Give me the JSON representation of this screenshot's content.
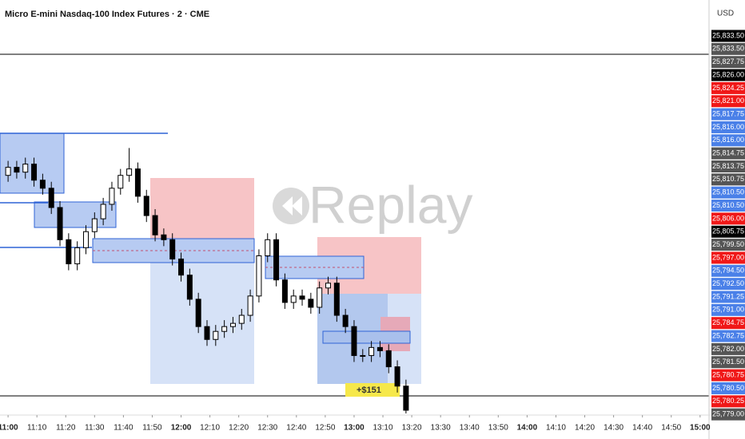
{
  "chart_data": {
    "type": "candlestick",
    "title": "Micro E-mini Nasdaq-100 Index Futures · 2 · CME",
    "currency": "USD",
    "watermark": "Replay",
    "trade_label": "+$151",
    "up_color": "#ffffff",
    "down_color": "#000000",
    "x": [
      660,
      663,
      666,
      669,
      672,
      675,
      678,
      681,
      684,
      687,
      690,
      693,
      696,
      699,
      702,
      705,
      708,
      711,
      714,
      717,
      720,
      723,
      726,
      729,
      732,
      735,
      738,
      741,
      744,
      747,
      750,
      753,
      756,
      759,
      762,
      765,
      768,
      771,
      774,
      777,
      780,
      783,
      786,
      789,
      792,
      795,
      798
    ],
    "open": [
      25814.75,
      25816.0,
      25815.25,
      25816.5,
      25814.0,
      25812.75,
      25809.75,
      25804.75,
      25801.0,
      25803.5,
      25806.0,
      25808.0,
      25810.25,
      25812.75,
      25814.75,
      25815.75,
      25811.5,
      25808.5,
      25805.5,
      25804.75,
      25801.75,
      25799.25,
      25795.5,
      25791.25,
      25789.25,
      25790.5,
      25791.25,
      25791.75,
      25793.0,
      25796.0,
      25802.25,
      25804.75,
      25798.5,
      25795.0,
      25796.0,
      25795.5,
      25794.25,
      25797.25,
      25798.0,
      25793.0,
      25791.25,
      25786.75,
      25786.75,
      25788.0,
      25787.5,
      25785.0,
      25782.0
    ],
    "high": [
      25817.0,
      25817.0,
      25817.5,
      25817.5,
      25815.0,
      25813.75,
      25810.75,
      25805.75,
      25804.5,
      25807.0,
      25809.0,
      25811.25,
      25813.75,
      25815.75,
      25819.0,
      25816.75,
      25812.5,
      25809.5,
      25806.5,
      25805.75,
      25802.75,
      25800.25,
      25796.5,
      25792.25,
      25791.5,
      25792.25,
      25792.75,
      25794.0,
      25797.0,
      25803.25,
      25805.75,
      25805.75,
      25799.5,
      25797.0,
      25797.0,
      25796.5,
      25798.25,
      25799.0,
      25799.0,
      25794.0,
      25792.25,
      25787.75,
      25789.0,
      25789.0,
      25788.5,
      25786.0,
      25783.0
    ],
    "low": [
      25813.75,
      25814.25,
      25814.25,
      25813.0,
      25811.75,
      25808.75,
      25803.75,
      25800.0,
      25800.0,
      25802.5,
      25805.0,
      25807.0,
      25809.25,
      25811.75,
      25813.75,
      25810.5,
      25807.5,
      25804.5,
      25803.75,
      25800.75,
      25798.25,
      25794.5,
      25790.25,
      25788.25,
      25788.25,
      25789.5,
      25790.25,
      25790.75,
      25792.0,
      25795.0,
      25801.25,
      25797.5,
      25794.0,
      25794.0,
      25794.5,
      25793.25,
      25793.25,
      25796.25,
      25792.0,
      25790.25,
      25785.75,
      25785.75,
      25785.75,
      25786.5,
      25784.0,
      25781.0,
      25777.75
    ],
    "close": [
      25816.0,
      25815.25,
      25816.5,
      25814.0,
      25812.75,
      25809.75,
      25804.75,
      25801.0,
      25803.5,
      25806.0,
      25808.0,
      25810.25,
      25812.75,
      25814.75,
      25815.75,
      25811.5,
      25808.5,
      25805.5,
      25804.75,
      25801.75,
      25799.25,
      25795.5,
      25791.25,
      25789.25,
      25790.5,
      25791.25,
      25791.75,
      25793.0,
      25796.0,
      25802.25,
      25804.75,
      25798.5,
      25795.0,
      25796.0,
      25795.5,
      25794.25,
      25797.25,
      25798.0,
      25793.0,
      25791.25,
      25786.75,
      25786.75,
      25788.0,
      25787.5,
      25785.0,
      25782.0,
      25778.25
    ],
    "xlim": [
      657.2,
      903.1
    ],
    "ylim": [
      25777.5,
      25842
    ],
    "xticks": [
      {
        "value": 660,
        "label": "11:00"
      },
      {
        "value": 670,
        "label": "11:10"
      },
      {
        "value": 680,
        "label": "11:20"
      },
      {
        "value": 690,
        "label": "11:30"
      },
      {
        "value": 700,
        "label": "11:40"
      },
      {
        "value": 710,
        "label": "11:50"
      },
      {
        "value": 720,
        "label": "12:00"
      },
      {
        "value": 730,
        "label": "12:10"
      },
      {
        "value": 740,
        "label": "12:20"
      },
      {
        "value": 750,
        "label": "12:30"
      },
      {
        "value": 760,
        "label": "12:40"
      },
      {
        "value": 770,
        "label": "12:50"
      },
      {
        "value": 780,
        "label": "13:00"
      },
      {
        "value": 790,
        "label": "13:10"
      },
      {
        "value": 800,
        "label": "13:20"
      },
      {
        "value": 810,
        "label": "13:30"
      },
      {
        "value": 820,
        "label": "13:40"
      },
      {
        "value": 830,
        "label": "13:50"
      },
      {
        "value": 840,
        "label": "14:00"
      },
      {
        "value": 850,
        "label": "14:10"
      },
      {
        "value": 860,
        "label": "14:20"
      },
      {
        "value": 870,
        "label": "14:30"
      },
      {
        "value": 880,
        "label": "14:40"
      },
      {
        "value": 890,
        "label": "14:50"
      },
      {
        "value": 900,
        "label": "15:00"
      }
    ],
    "price_tags": [
      {
        "label": "25,833.50",
        "color": "#000000"
      },
      {
        "label": "25,833.50",
        "color": "#555555"
      },
      {
        "label": "25,827.75",
        "color": "#555555"
      },
      {
        "label": "25,826.00",
        "color": "#000000"
      },
      {
        "label": "25,824.25",
        "color": "#f01818"
      },
      {
        "label": "25,821.00",
        "color": "#f01818"
      },
      {
        "label": "25,817.75",
        "color": "#4a80e8"
      },
      {
        "label": "25,816.00",
        "color": "#4a80e8"
      },
      {
        "label": "25,816.00",
        "color": "#4a80e8"
      },
      {
        "label": "25,814.75",
        "color": "#555555"
      },
      {
        "label": "25,813.75",
        "color": "#555555"
      },
      {
        "label": "25,810.75",
        "color": "#555555"
      },
      {
        "label": "25,810.50",
        "color": "#4a80e8"
      },
      {
        "label": "25,810.50",
        "color": "#4a80e8"
      },
      {
        "label": "25,806.00",
        "color": "#f01818"
      },
      {
        "label": "25,805.75",
        "color": "#000000"
      },
      {
        "label": "25,799.50",
        "color": "#555555"
      },
      {
        "label": "25,797.00",
        "color": "#f01818"
      },
      {
        "label": "25,794.50",
        "color": "#4a80e8"
      },
      {
        "label": "25,792.50",
        "color": "#4a80e8"
      },
      {
        "label": "25,791.25",
        "color": "#4a80e8"
      },
      {
        "label": "25,791.00",
        "color": "#4a80e8"
      },
      {
        "label": "25,784.75",
        "color": "#f01818"
      },
      {
        "label": "25,782.75",
        "color": "#4a80e8"
      },
      {
        "label": "25,782.00",
        "color": "#555555"
      },
      {
        "label": "25,781.50",
        "color": "#555555"
      },
      {
        "label": "25,780.75",
        "color": "#f01818"
      },
      {
        "label": "25,780.50",
        "color": "#4a80e8"
      },
      {
        "label": "25,780.25",
        "color": "#f01818"
      },
      {
        "label": "25,779.00",
        "color": "#555555"
      }
    ]
  }
}
